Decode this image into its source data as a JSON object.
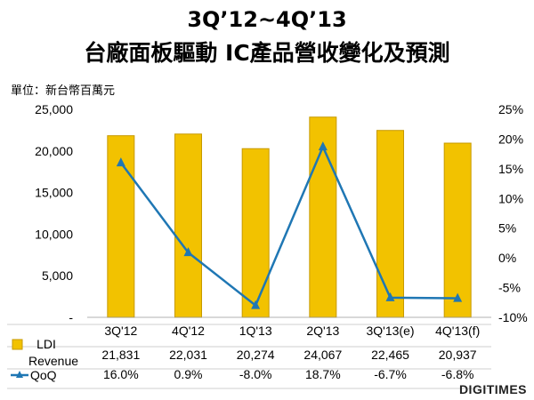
{
  "title": "3Q’12~4Q’13",
  "subtitle": "台廠面板驅動 IC產品營收變化及預測",
  "unit_label": "單位：新台幣百萬元",
  "brand": "DIGITIMES",
  "colors": {
    "bar": "#F2C200",
    "bar_edge": "#C79A00",
    "line": "#1F77B4"
  },
  "chart_data": {
    "type": "bar",
    "categories": [
      "3Q'12",
      "4Q'12",
      "1Q'13",
      "2Q'13",
      "3Q'13(e)",
      "4Q'13(f)"
    ],
    "series": [
      {
        "name": "LDI Revenue",
        "type": "bar",
        "axis": "left",
        "values": [
          21831,
          22031,
          20274,
          24067,
          22465,
          20937
        ],
        "labels": [
          "21,831",
          "22,031",
          "20,274",
          "24,067",
          "22,465",
          "20,937"
        ]
      },
      {
        "name": "QoQ",
        "type": "line",
        "axis": "right",
        "values": [
          16.0,
          0.9,
          -8.0,
          18.7,
          -6.7,
          -6.8
        ],
        "labels": [
          "16.0%",
          "0.9%",
          "-8.0%",
          "18.7%",
          "-6.7%",
          "-6.8%"
        ]
      }
    ],
    "ylim_left": [
      0,
      25000
    ],
    "ylim_right": [
      -10,
      25
    ],
    "left_ticks": [
      "-",
      "5,000",
      "10,000",
      "15,000",
      "20,000",
      "25,000"
    ],
    "right_ticks": [
      "-10%",
      "-5%",
      "0%",
      "5%",
      "10%",
      "15%",
      "20%",
      "25%"
    ],
    "legend": "bottom-table"
  }
}
